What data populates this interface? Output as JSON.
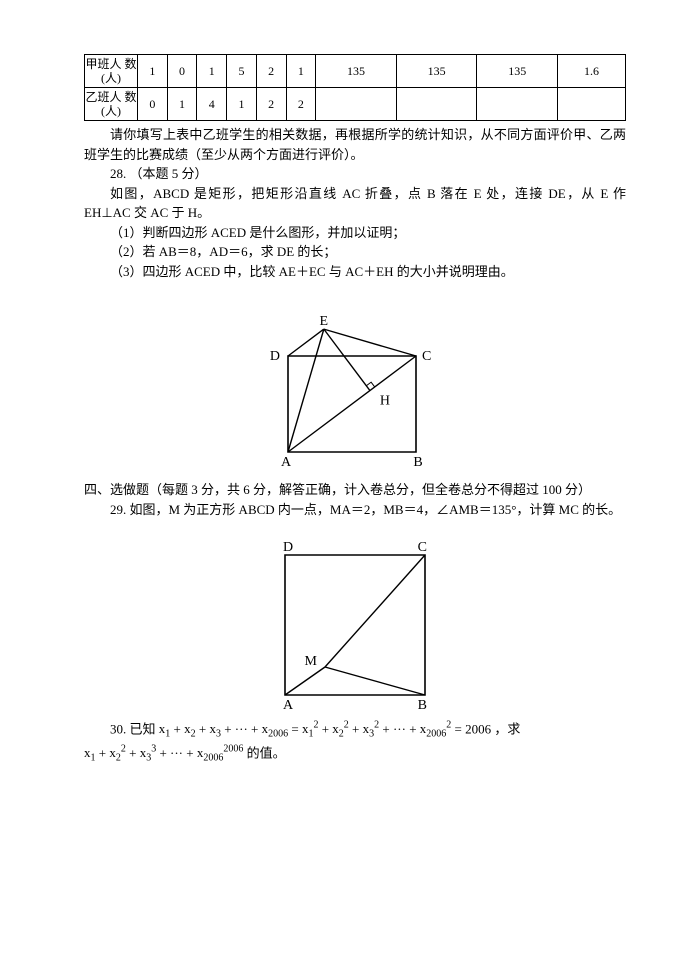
{
  "table": {
    "row1_header": "甲班人\n数(人)",
    "row2_header": "乙班人\n数(人)",
    "row1": [
      "1",
      "0",
      "1",
      "5",
      "2",
      "1",
      "135",
      "135",
      "135",
      "1.6"
    ],
    "row2": [
      "0",
      "1",
      "4",
      "1",
      "2",
      "2",
      "",
      "",
      "",
      ""
    ]
  },
  "text": {
    "after_table": "请你填写上表中乙班学生的相关数据，再根据所学的统计知识，从不同方面评价甲、乙两班学生的比赛成绩（至少从两个方面进行评价）。",
    "q28_head": "28.  （本题 5 分）",
    "q28_body": "如图，ABCD 是矩形，把矩形沿直线 AC 折叠，点 B 落在 E 处，连接 DE，从 E 作 EH⊥AC 交 AC 于 H。",
    "q28_1": "（1）判断四边形 ACED 是什么图形，并加以证明；",
    "q28_2": "（2）若 AB＝8，AD＝6，求 DE 的长；",
    "q28_3": "（3）四边形 ACED 中，比较 AE＋EC 与 AC＋EH 的大小并说明理由。",
    "section4": "四、选做题（每题 3 分，共 6 分，解答正确，计入卷总分，但全卷总分不得超过 100 分）",
    "q29": "29.  如图，M 为正方形 ABCD 内一点，MA＝2，MB＝4，∠AMB＝135°，计算 MC 的长。",
    "q30_prefix": "30.  已知 ",
    "q30_expr1a": "x",
    "q30_plus": " + ",
    "q30_dots": " + ··· + ",
    "q30_eq": " = ",
    "q30_2006": "2006",
    "q30_comma": " ，求",
    "q30_trailer": " 的值。"
  },
  "fig28": {
    "labels": {
      "E": "E",
      "D": "D",
      "C": "C",
      "H": "H",
      "A": "A",
      "B": "B"
    }
  },
  "fig29": {
    "labels": {
      "D": "D",
      "C": "C",
      "M": "M",
      "A": "A",
      "B": "B"
    }
  },
  "style": {
    "stroke": "#000000",
    "stroke_width": 1.4,
    "font_family": "Times New Roman, serif",
    "label_size": 14
  }
}
